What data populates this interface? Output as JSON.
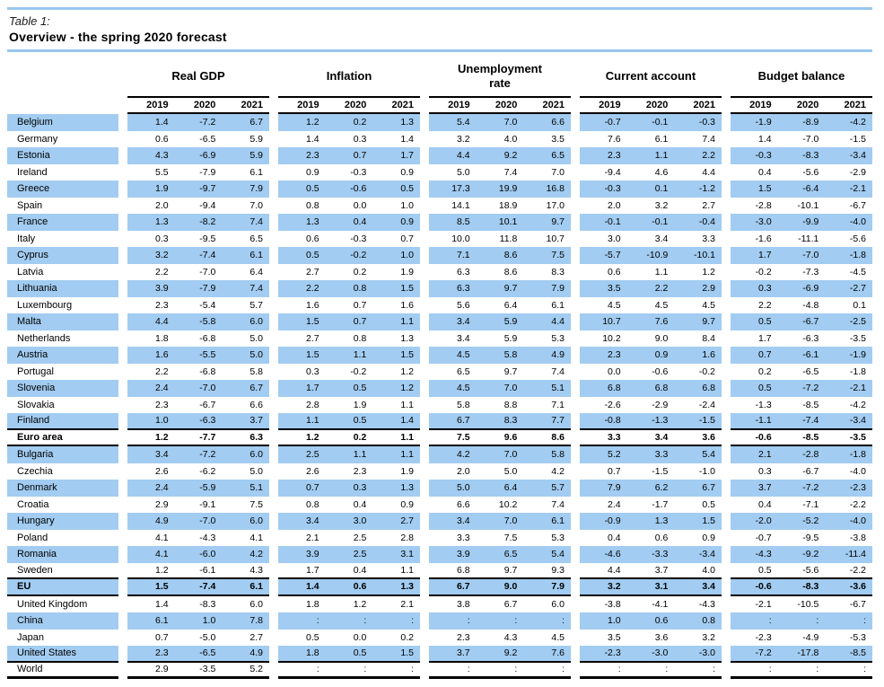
{
  "header": {
    "table_label": "Table 1:",
    "title": "Overview - the spring 2020 forecast"
  },
  "columns": {
    "groups": [
      "Real GDP",
      "Inflation",
      "Unemployment\nrate",
      "Current account",
      "Budget balance"
    ],
    "years": [
      "2019",
      "2020",
      "2021"
    ]
  },
  "colors": {
    "row_highlight": "#A2CCF1",
    "rule_blue": "#99C7EF",
    "line_black": "#000000"
  },
  "missing_value_symbol": ":",
  "rows": [
    {
      "name": "Belgium",
      "bold": false,
      "rule_below": false,
      "final_rule": false,
      "values": [
        "1.4",
        "-7.2",
        "6.7",
        "1.2",
        "0.2",
        "1.3",
        "5.4",
        "7.0",
        "6.6",
        "-0.7",
        "-0.1",
        "-0.3",
        "-1.9",
        "-8.9",
        "-4.2"
      ]
    },
    {
      "name": "Germany",
      "bold": false,
      "rule_below": false,
      "final_rule": false,
      "values": [
        "0.6",
        "-6.5",
        "5.9",
        "1.4",
        "0.3",
        "1.4",
        "3.2",
        "4.0",
        "3.5",
        "7.6",
        "6.1",
        "7.4",
        "1.4",
        "-7.0",
        "-1.5"
      ]
    },
    {
      "name": "Estonia",
      "bold": false,
      "rule_below": false,
      "final_rule": false,
      "values": [
        "4.3",
        "-6.9",
        "5.9",
        "2.3",
        "0.7",
        "1.7",
        "4.4",
        "9.2",
        "6.5",
        "2.3",
        "1.1",
        "2.2",
        "-0.3",
        "-8.3",
        "-3.4"
      ]
    },
    {
      "name": "Ireland",
      "bold": false,
      "rule_below": false,
      "final_rule": false,
      "values": [
        "5.5",
        "-7.9",
        "6.1",
        "0.9",
        "-0.3",
        "0.9",
        "5.0",
        "7.4",
        "7.0",
        "-9.4",
        "4.6",
        "4.4",
        "0.4",
        "-5.6",
        "-2.9"
      ]
    },
    {
      "name": "Greece",
      "bold": false,
      "rule_below": false,
      "final_rule": false,
      "values": [
        "1.9",
        "-9.7",
        "7.9",
        "0.5",
        "-0.6",
        "0.5",
        "17.3",
        "19.9",
        "16.8",
        "-0.3",
        "0.1",
        "-1.2",
        "1.5",
        "-6.4",
        "-2.1"
      ]
    },
    {
      "name": "Spain",
      "bold": false,
      "rule_below": false,
      "final_rule": false,
      "values": [
        "2.0",
        "-9.4",
        "7.0",
        "0.8",
        "0.0",
        "1.0",
        "14.1",
        "18.9",
        "17.0",
        "2.0",
        "3.2",
        "2.7",
        "-2.8",
        "-10.1",
        "-6.7"
      ]
    },
    {
      "name": "France",
      "bold": false,
      "rule_below": false,
      "final_rule": false,
      "values": [
        "1.3",
        "-8.2",
        "7.4",
        "1.3",
        "0.4",
        "0.9",
        "8.5",
        "10.1",
        "9.7",
        "-0.1",
        "-0.1",
        "-0.4",
        "-3.0",
        "-9.9",
        "-4.0"
      ]
    },
    {
      "name": "Italy",
      "bold": false,
      "rule_below": false,
      "final_rule": false,
      "values": [
        "0.3",
        "-9.5",
        "6.5",
        "0.6",
        "-0.3",
        "0.7",
        "10.0",
        "11.8",
        "10.7",
        "3.0",
        "3.4",
        "3.3",
        "-1.6",
        "-11.1",
        "-5.6"
      ]
    },
    {
      "name": "Cyprus",
      "bold": false,
      "rule_below": false,
      "final_rule": false,
      "values": [
        "3.2",
        "-7.4",
        "6.1",
        "0.5",
        "-0.2",
        "1.0",
        "7.1",
        "8.6",
        "7.5",
        "-5.7",
        "-10.9",
        "-10.1",
        "1.7",
        "-7.0",
        "-1.8"
      ]
    },
    {
      "name": "Latvia",
      "bold": false,
      "rule_below": false,
      "final_rule": false,
      "values": [
        "2.2",
        "-7.0",
        "6.4",
        "2.7",
        "0.2",
        "1.9",
        "6.3",
        "8.6",
        "8.3",
        "0.6",
        "1.1",
        "1.2",
        "-0.2",
        "-7.3",
        "-4.5"
      ]
    },
    {
      "name": "Lithuania",
      "bold": false,
      "rule_below": false,
      "final_rule": false,
      "values": [
        "3.9",
        "-7.9",
        "7.4",
        "2.2",
        "0.8",
        "1.5",
        "6.3",
        "9.7",
        "7.9",
        "3.5",
        "2.2",
        "2.9",
        "0.3",
        "-6.9",
        "-2.7"
      ]
    },
    {
      "name": "Luxembourg",
      "bold": false,
      "rule_below": false,
      "final_rule": false,
      "values": [
        "2.3",
        "-5.4",
        "5.7",
        "1.6",
        "0.7",
        "1.6",
        "5.6",
        "6.4",
        "6.1",
        "4.5",
        "4.5",
        "4.5",
        "2.2",
        "-4.8",
        "0.1"
      ]
    },
    {
      "name": "Malta",
      "bold": false,
      "rule_below": false,
      "final_rule": false,
      "values": [
        "4.4",
        "-5.8",
        "6.0",
        "1.5",
        "0.7",
        "1.1",
        "3.4",
        "5.9",
        "4.4",
        "10.7",
        "7.6",
        "9.7",
        "0.5",
        "-6.7",
        "-2.5"
      ]
    },
    {
      "name": "Netherlands",
      "bold": false,
      "rule_below": false,
      "final_rule": false,
      "values": [
        "1.8",
        "-6.8",
        "5.0",
        "2.7",
        "0.8",
        "1.3",
        "3.4",
        "5.9",
        "5.3",
        "10.2",
        "9.0",
        "8.4",
        "1.7",
        "-6.3",
        "-3.5"
      ]
    },
    {
      "name": "Austria",
      "bold": false,
      "rule_below": false,
      "final_rule": false,
      "values": [
        "1.6",
        "-5.5",
        "5.0",
        "1.5",
        "1.1",
        "1.5",
        "4.5",
        "5.8",
        "4.9",
        "2.3",
        "0.9",
        "1.6",
        "0.7",
        "-6.1",
        "-1.9"
      ]
    },
    {
      "name": "Portugal",
      "bold": false,
      "rule_below": false,
      "final_rule": false,
      "values": [
        "2.2",
        "-6.8",
        "5.8",
        "0.3",
        "-0.2",
        "1.2",
        "6.5",
        "9.7",
        "7.4",
        "0.0",
        "-0.6",
        "-0.2",
        "0.2",
        "-6.5",
        "-1.8"
      ]
    },
    {
      "name": "Slovenia",
      "bold": false,
      "rule_below": false,
      "final_rule": false,
      "values": [
        "2.4",
        "-7.0",
        "6.7",
        "1.7",
        "0.5",
        "1.2",
        "4.5",
        "7.0",
        "5.1",
        "6.8",
        "6.8",
        "6.8",
        "0.5",
        "-7.2",
        "-2.1"
      ]
    },
    {
      "name": "Slovakia",
      "bold": false,
      "rule_below": false,
      "final_rule": false,
      "values": [
        "2.3",
        "-6.7",
        "6.6",
        "2.8",
        "1.9",
        "1.1",
        "5.8",
        "8.8",
        "7.1",
        "-2.6",
        "-2.9",
        "-2.4",
        "-1.3",
        "-8.5",
        "-4.2"
      ]
    },
    {
      "name": "Finland",
      "bold": false,
      "rule_below": true,
      "final_rule": false,
      "values": [
        "1.0",
        "-6.3",
        "3.7",
        "1.1",
        "0.5",
        "1.4",
        "6.7",
        "8.3",
        "7.7",
        "-0.8",
        "-1.3",
        "-1.5",
        "-1.1",
        "-7.4",
        "-3.4"
      ]
    },
    {
      "name": "Euro area",
      "bold": true,
      "rule_below": true,
      "final_rule": false,
      "values": [
        "1.2",
        "-7.7",
        "6.3",
        "1.2",
        "0.2",
        "1.1",
        "7.5",
        "9.6",
        "8.6",
        "3.3",
        "3.4",
        "3.6",
        "-0.6",
        "-8.5",
        "-3.5"
      ]
    },
    {
      "name": "Bulgaria",
      "bold": false,
      "rule_below": false,
      "final_rule": false,
      "values": [
        "3.4",
        "-7.2",
        "6.0",
        "2.5",
        "1.1",
        "1.1",
        "4.2",
        "7.0",
        "5.8",
        "5.2",
        "3.3",
        "5.4",
        "2.1",
        "-2.8",
        "-1.8"
      ]
    },
    {
      "name": "Czechia",
      "bold": false,
      "rule_below": false,
      "final_rule": false,
      "values": [
        "2.6",
        "-6.2",
        "5.0",
        "2.6",
        "2.3",
        "1.9",
        "2.0",
        "5.0",
        "4.2",
        "0.7",
        "-1.5",
        "-1.0",
        "0.3",
        "-6.7",
        "-4.0"
      ]
    },
    {
      "name": "Denmark",
      "bold": false,
      "rule_below": false,
      "final_rule": false,
      "values": [
        "2.4",
        "-5.9",
        "5.1",
        "0.7",
        "0.3",
        "1.3",
        "5.0",
        "6.4",
        "5.7",
        "7.9",
        "6.2",
        "6.7",
        "3.7",
        "-7.2",
        "-2.3"
      ]
    },
    {
      "name": "Croatia",
      "bold": false,
      "rule_below": false,
      "final_rule": false,
      "values": [
        "2.9",
        "-9.1",
        "7.5",
        "0.8",
        "0.4",
        "0.9",
        "6.6",
        "10.2",
        "7.4",
        "2.4",
        "-1.7",
        "0.5",
        "0.4",
        "-7.1",
        "-2.2"
      ]
    },
    {
      "name": "Hungary",
      "bold": false,
      "rule_below": false,
      "final_rule": false,
      "values": [
        "4.9",
        "-7.0",
        "6.0",
        "3.4",
        "3.0",
        "2.7",
        "3.4",
        "7.0",
        "6.1",
        "-0.9",
        "1.3",
        "1.5",
        "-2.0",
        "-5.2",
        "-4.0"
      ]
    },
    {
      "name": "Poland",
      "bold": false,
      "rule_below": false,
      "final_rule": false,
      "values": [
        "4.1",
        "-4.3",
        "4.1",
        "2.1",
        "2.5",
        "2.8",
        "3.3",
        "7.5",
        "5.3",
        "0.4",
        "0.6",
        "0.9",
        "-0.7",
        "-9.5",
        "-3.8"
      ]
    },
    {
      "name": "Romania",
      "bold": false,
      "rule_below": false,
      "final_rule": false,
      "values": [
        "4.1",
        "-6.0",
        "4.2",
        "3.9",
        "2.5",
        "3.1",
        "3.9",
        "6.5",
        "5.4",
        "-4.6",
        "-3.3",
        "-3.4",
        "-4.3",
        "-9.2",
        "-11.4"
      ]
    },
    {
      "name": "Sweden",
      "bold": false,
      "rule_below": true,
      "final_rule": false,
      "values": [
        "1.2",
        "-6.1",
        "4.3",
        "1.7",
        "0.4",
        "1.1",
        "6.8",
        "9.7",
        "9.3",
        "4.4",
        "3.7",
        "4.0",
        "0.5",
        "-5.6",
        "-2.2"
      ]
    },
    {
      "name": "EU",
      "bold": true,
      "rule_below": true,
      "final_rule": false,
      "values": [
        "1.5",
        "-7.4",
        "6.1",
        "1.4",
        "0.6",
        "1.3",
        "6.7",
        "9.0",
        "7.9",
        "3.2",
        "3.1",
        "3.4",
        "-0.6",
        "-8.3",
        "-3.6"
      ]
    },
    {
      "name": "United Kingdom",
      "bold": false,
      "rule_below": false,
      "final_rule": false,
      "values": [
        "1.4",
        "-8.3",
        "6.0",
        "1.8",
        "1.2",
        "2.1",
        "3.8",
        "6.7",
        "6.0",
        "-3.8",
        "-4.1",
        "-4.3",
        "-2.1",
        "-10.5",
        "-6.7"
      ]
    },
    {
      "name": "China",
      "bold": false,
      "rule_below": false,
      "final_rule": false,
      "values": [
        "6.1",
        "1.0",
        "7.8",
        ":",
        ":",
        ":",
        ":",
        ":",
        ":",
        "1.0",
        "0.6",
        "0.8",
        ":",
        ":",
        ":"
      ]
    },
    {
      "name": "Japan",
      "bold": false,
      "rule_below": false,
      "final_rule": false,
      "values": [
        "0.7",
        "-5.0",
        "2.7",
        "0.5",
        "0.0",
        "0.2",
        "2.3",
        "4.3",
        "4.5",
        "3.5",
        "3.6",
        "3.2",
        "-2.3",
        "-4.9",
        "-5.3"
      ]
    },
    {
      "name": "United States",
      "bold": false,
      "rule_below": true,
      "final_rule": false,
      "values": [
        "2.3",
        "-6.5",
        "4.9",
        "1.8",
        "0.5",
        "1.5",
        "3.7",
        "9.2",
        "7.6",
        "-2.3",
        "-3.0",
        "-3.0",
        "-7.2",
        "-17.8",
        "-8.5"
      ]
    },
    {
      "name": "World",
      "bold": false,
      "rule_below": false,
      "final_rule": true,
      "values": [
        "2.9",
        "-3.5",
        "5.2",
        ":",
        ":",
        ":",
        ":",
        ":",
        ":",
        ":",
        ":",
        ":",
        ":",
        ":",
        ":"
      ]
    }
  ]
}
